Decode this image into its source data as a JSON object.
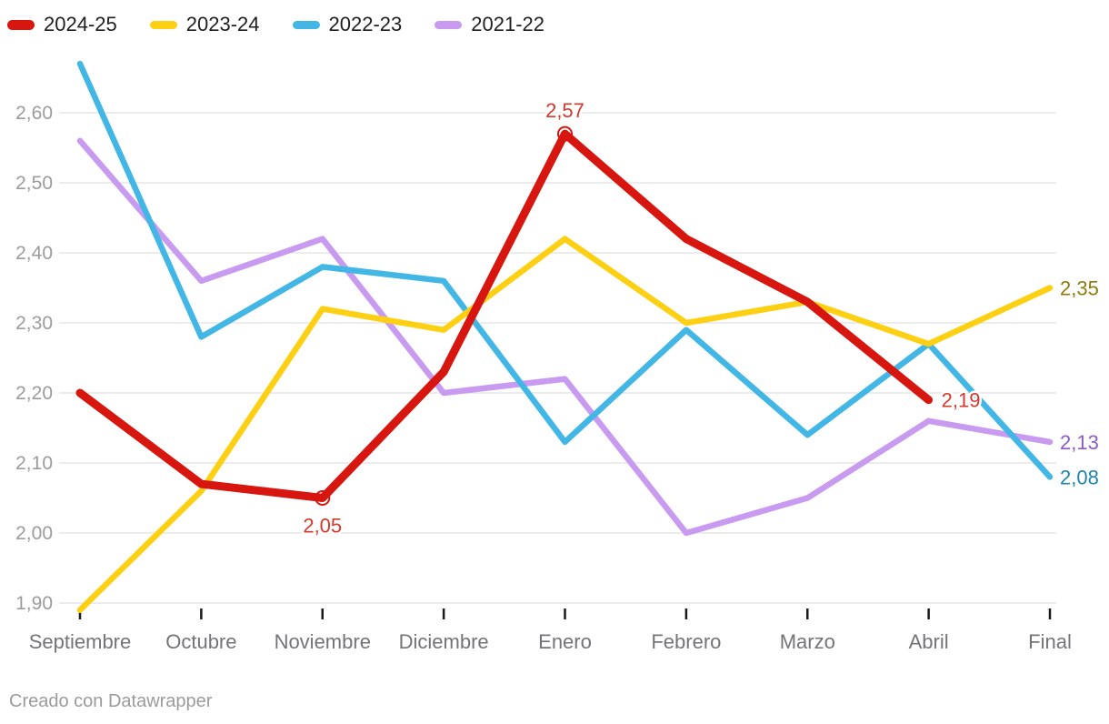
{
  "chart_data": {
    "type": "line",
    "title": "",
    "xlabel": "",
    "ylabel": "",
    "categories": [
      "Septiembre",
      "Octubre",
      "Noviembre",
      "Diciembre",
      "Enero",
      "Febrero",
      "Marzo",
      "Abril",
      "Final"
    ],
    "series": [
      {
        "name": "2024-25",
        "color": "#d81610",
        "line_width": 9,
        "values": [
          2.2,
          2.07,
          2.05,
          2.23,
          2.57,
          2.42,
          2.33,
          2.19,
          null
        ]
      },
      {
        "name": "2023-24",
        "color": "#fdd014",
        "line_width": 6.5,
        "values": [
          1.89,
          2.06,
          2.32,
          2.29,
          2.42,
          2.3,
          2.33,
          2.27,
          2.35
        ]
      },
      {
        "name": "2022-23",
        "color": "#42b7e5",
        "line_width": 6.5,
        "values": [
          2.67,
          2.28,
          2.38,
          2.36,
          2.13,
          2.29,
          2.14,
          2.27,
          2.08
        ]
      },
      {
        "name": "2021-22",
        "color": "#c89bf1",
        "line_width": 6.5,
        "values": [
          2.56,
          2.36,
          2.42,
          2.2,
          2.22,
          2.0,
          2.05,
          2.16,
          2.13
        ]
      }
    ],
    "y_axis": {
      "min": 1.9,
      "max": 2.6,
      "step": 0.1,
      "ticks": [
        {
          "value": 1.9,
          "label": "1,90"
        },
        {
          "value": 2.0,
          "label": "2,00"
        },
        {
          "value": 2.1,
          "label": "2,10"
        },
        {
          "value": 2.2,
          "label": "2,20"
        },
        {
          "value": 2.3,
          "label": "2,30"
        },
        {
          "value": 2.4,
          "label": "2,40"
        },
        {
          "value": 2.5,
          "label": "2,50"
        },
        {
          "value": 2.6,
          "label": "2,60"
        }
      ]
    },
    "grid": "horizontal",
    "legend_position": "top-left",
    "point_labels": [
      {
        "series": "2024-25",
        "category": "Noviembre",
        "value": 2.05,
        "text": "2,05",
        "placement": "below",
        "marker": "open-circle",
        "color": "#d5382c"
      },
      {
        "series": "2024-25",
        "category": "Enero",
        "value": 2.57,
        "text": "2,57",
        "placement": "above",
        "marker": "open-circle",
        "color": "#d5382c"
      },
      {
        "series": "2024-25",
        "category": "Abril",
        "value": 2.19,
        "text": "2,19",
        "placement": "right",
        "marker": null,
        "color": "#d5382c"
      },
      {
        "series": "2023-24",
        "category": "Final",
        "value": 2.35,
        "text": "2,35",
        "placement": "right",
        "marker": null,
        "color": "#917a0b"
      },
      {
        "series": "2021-22",
        "category": "Final",
        "value": 2.13,
        "text": "2,13",
        "placement": "right",
        "marker": null,
        "color": "#8d5ac6"
      },
      {
        "series": "2022-23",
        "category": "Final",
        "value": 2.08,
        "text": "2,08",
        "placement": "right",
        "marker": null,
        "color": "#1f85a9"
      }
    ],
    "style": {
      "gridline_color": "#e6e6e6",
      "y_tick_label_color": "#9c9c9c",
      "x_tick_label_color": "#747478",
      "x_tick_mark_color": "#1a1a1a",
      "background": "#ffffff"
    }
  },
  "footer": {
    "attribution": "Creado con Datawrapper"
  }
}
